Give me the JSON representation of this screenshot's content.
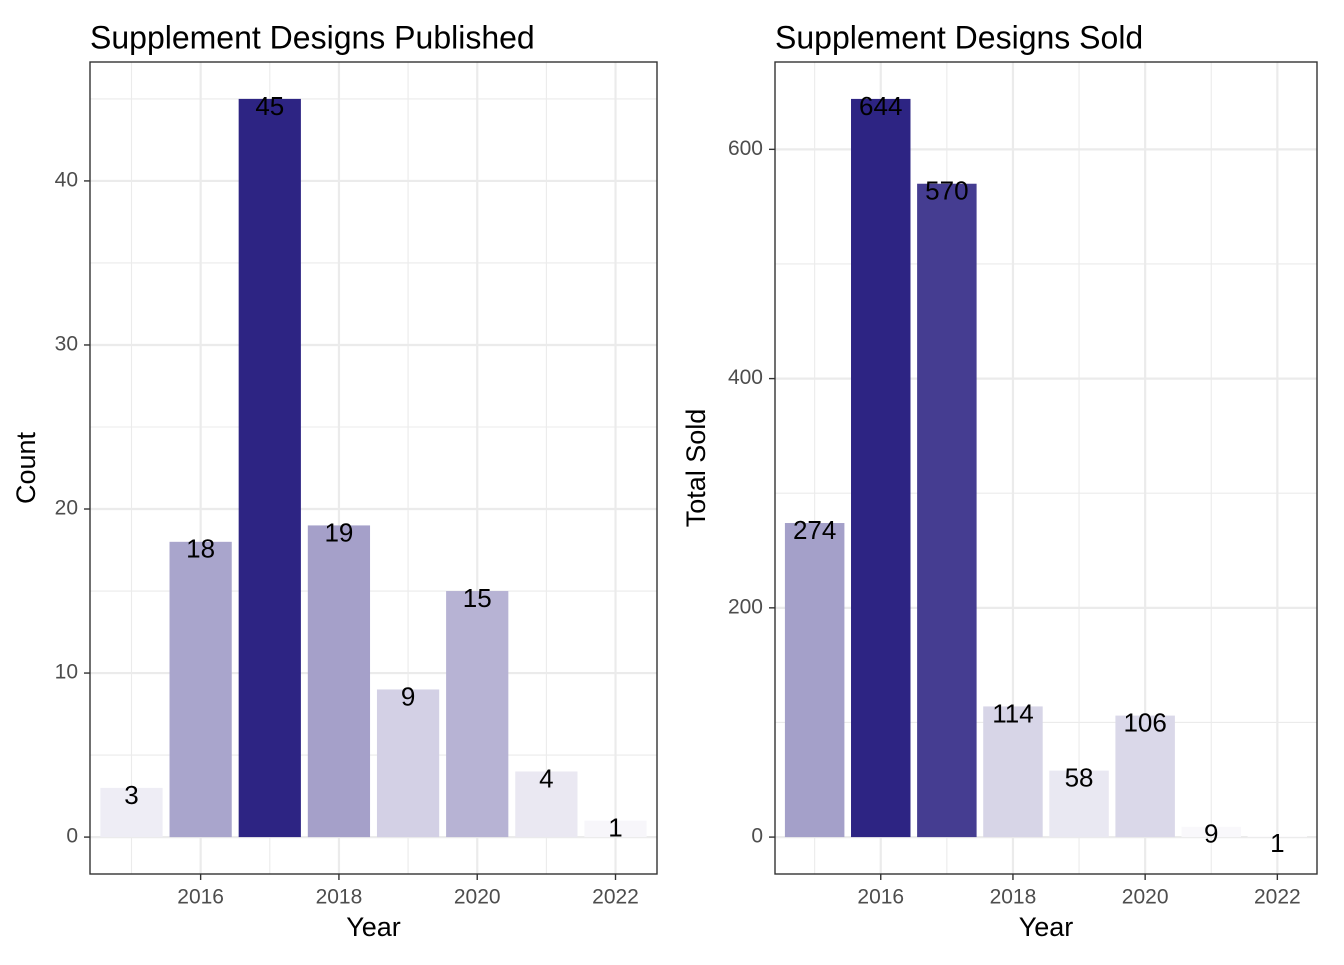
{
  "chart_data": [
    {
      "type": "bar",
      "title": "Supplement Designs Published",
      "xlabel": "Year",
      "ylabel": "Count",
      "x": [
        2015,
        2016,
        2017,
        2018,
        2019,
        2020,
        2021,
        2022
      ],
      "values": [
        3,
        18,
        45,
        19,
        9,
        15,
        4,
        1
      ],
      "data_labels": [
        "3",
        "18",
        "45",
        "19",
        "9",
        "15",
        "4",
        "1"
      ],
      "xlim": [
        2014.4,
        2022.6
      ],
      "ylim": [
        -2.25,
        47.25
      ],
      "x_ticks": [
        2016,
        2018,
        2020,
        2022
      ],
      "x_tick_labels": [
        "2016",
        "2018",
        "2020",
        "2022"
      ],
      "y_ticks": [
        0,
        10,
        20,
        30,
        40
      ],
      "y_tick_labels": [
        "0",
        "10",
        "20",
        "30",
        "40"
      ],
      "grid": true,
      "fill": "value-scaled purple gradient (light to dark)"
    },
    {
      "type": "bar",
      "title": "Supplement Designs Sold",
      "xlabel": "Year",
      "ylabel": "Total Sold",
      "x": [
        2015,
        2016,
        2017,
        2018,
        2019,
        2020,
        2021,
        2022
      ],
      "values": [
        274,
        644,
        570,
        114,
        58,
        106,
        9,
        1
      ],
      "data_labels": [
        "274",
        "644",
        "570",
        "114",
        "58",
        "106",
        "9",
        "1"
      ],
      "xlim": [
        2014.4,
        2022.6
      ],
      "ylim": [
        -32.2,
        676.2
      ],
      "x_ticks": [
        2016,
        2018,
        2020,
        2022
      ],
      "x_tick_labels": [
        "2016",
        "2018",
        "2020",
        "2022"
      ],
      "y_ticks": [
        0,
        200,
        400,
        600
      ],
      "y_tick_labels": [
        "0",
        "200",
        "400",
        "600"
      ],
      "grid": true,
      "fill": "value-scaled purple gradient (light to dark)"
    }
  ],
  "colors": {
    "low": "#fcfbfd",
    "high": "#2d2483",
    "grid": "#ebebeb",
    "panel_border": "#333333",
    "tick_text": "#4d4d4d"
  }
}
